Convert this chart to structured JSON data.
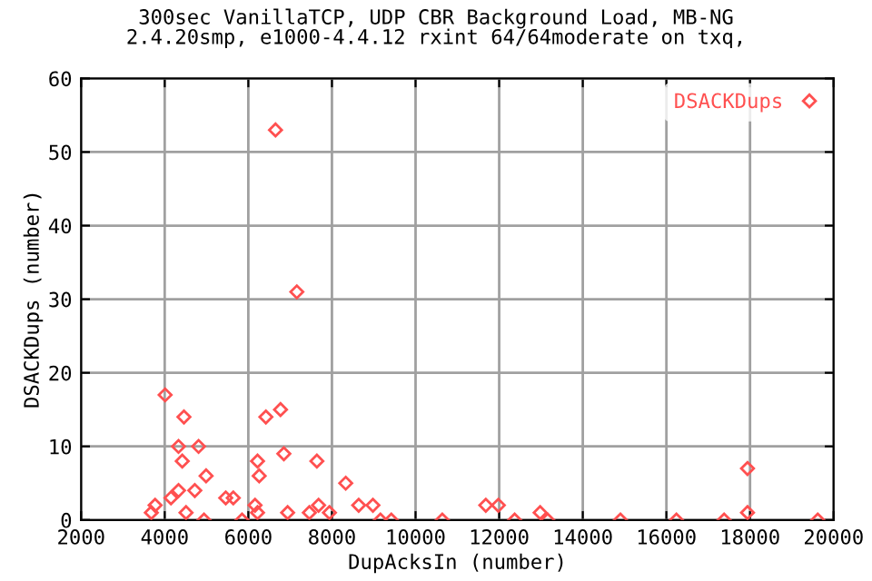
{
  "chart_data": {
    "type": "scatter",
    "title": "300sec VanillaTCP, UDP CBR Background Load, MB-NG\n2.4.20smp, e1000-4.4.12 rxint 64/64moderate on txq,",
    "xlabel": "DupAcksIn (number)",
    "ylabel": "DSACKDups (number)",
    "xlim": [
      2000,
      20000
    ],
    "xticks": [
      2000,
      4000,
      6000,
      8000,
      10000,
      12000,
      14000,
      16000,
      18000,
      20000
    ],
    "ylim": [
      0,
      60
    ],
    "yticks": [
      0,
      10,
      20,
      30,
      40,
      50,
      60
    ],
    "grid": true,
    "legend": "top right",
    "marker": "diamond",
    "series": [
      {
        "name": "DSACKDups",
        "color": "#ff5050",
        "x": [
          3680,
          3770,
          4010,
          4150,
          4330,
          4330,
          4420,
          4460,
          4510,
          4720,
          4810,
          4990,
          4940,
          5460,
          5640,
          5850,
          6160,
          6220,
          6220,
          6260,
          6420,
          6650,
          6770,
          6850,
          6940,
          7160,
          7460,
          7640,
          7680,
          7940,
          8330,
          8640,
          8980,
          9160,
          9420,
          10640,
          11680,
          11980,
          12370,
          12980,
          13160,
          14900,
          16240,
          17380,
          17940,
          17940,
          19620
        ],
        "values": [
          1,
          2,
          17,
          3,
          4,
          10,
          8,
          14,
          1,
          4,
          10,
          6,
          0,
          3,
          3,
          0,
          2,
          1,
          8,
          6,
          14,
          53,
          15,
          9,
          1,
          31,
          1,
          8,
          2,
          1,
          5,
          2,
          2,
          0,
          0,
          0,
          2,
          2,
          0,
          1,
          0,
          0,
          0,
          0,
          7,
          1,
          0
        ]
      }
    ]
  }
}
